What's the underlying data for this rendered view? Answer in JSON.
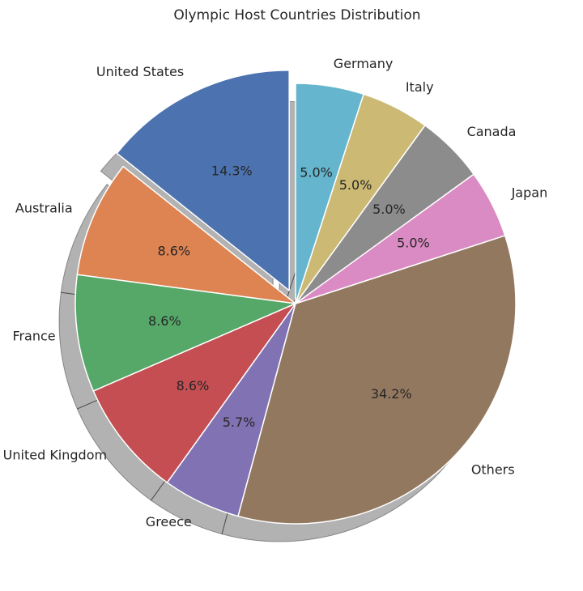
{
  "chart_data": {
    "type": "pie",
    "title": "Olympic Host Countries Distribution",
    "labels": [
      "United States",
      "Australia",
      "France",
      "United Kingdom",
      "Greece",
      "Others",
      "Japan",
      "Canada",
      "Italy",
      "Germany"
    ],
    "percent_labels": [
      "14.3%",
      "8.6%",
      "8.6%",
      "8.6%",
      "5.7%",
      "34.2%",
      "5.0%",
      "5.0%",
      "5.0%",
      "5.0%"
    ],
    "values": [
      14.3,
      8.6,
      8.6,
      8.6,
      5.7,
      34.2,
      5.0,
      5.0,
      5.0,
      5.0
    ],
    "colors": [
      "#4c72b0",
      "#dd8452",
      "#55a868",
      "#c44e52",
      "#8172b3",
      "#937860",
      "#da8bc3",
      "#8c8c8c",
      "#ccb974",
      "#64b5cd"
    ],
    "exploded": [
      "United States"
    ],
    "start_angle_deg": 90,
    "direction": "counterclockwise",
    "shadow": true
  }
}
